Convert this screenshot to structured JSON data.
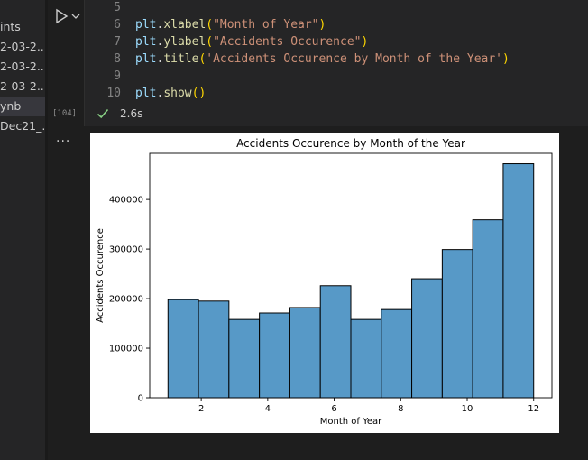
{
  "explorer": {
    "items": [
      {
        "label": "ints"
      },
      {
        "label": "2-03-2..."
      },
      {
        "label": "2-03-2..."
      },
      {
        "label": "2-03-2..."
      },
      {
        "label": "ynb"
      },
      {
        "label": "Dec21_..."
      }
    ]
  },
  "cell": {
    "execution_count": "[104]",
    "status_time": "2.6s",
    "ellipsis": "...",
    "lines": [
      {
        "num": "5",
        "tokens": []
      },
      {
        "num": "6",
        "tokens": [
          {
            "t": "plt",
            "c": "obj"
          },
          {
            "t": ".",
            "c": ""
          },
          {
            "t": "xlabel",
            "c": "fn"
          },
          {
            "t": "(",
            "c": "paren"
          },
          {
            "t": "\"Month of Year\"",
            "c": "str"
          },
          {
            "t": ")",
            "c": "paren"
          }
        ]
      },
      {
        "num": "7",
        "tokens": [
          {
            "t": "plt",
            "c": "obj"
          },
          {
            "t": ".",
            "c": ""
          },
          {
            "t": "ylabel",
            "c": "fn"
          },
          {
            "t": "(",
            "c": "paren"
          },
          {
            "t": "\"Accidents Occurence\"",
            "c": "str"
          },
          {
            "t": ")",
            "c": "paren"
          }
        ]
      },
      {
        "num": "8",
        "tokens": [
          {
            "t": "plt",
            "c": "obj"
          },
          {
            "t": ".",
            "c": ""
          },
          {
            "t": "title",
            "c": "fn"
          },
          {
            "t": "(",
            "c": "paren"
          },
          {
            "t": "'Accidents Occurence by Month of the Year'",
            "c": "str"
          },
          {
            "t": ")",
            "c": "paren"
          }
        ]
      },
      {
        "num": "9",
        "tokens": []
      },
      {
        "num": "10",
        "tokens": [
          {
            "t": "plt",
            "c": "obj"
          },
          {
            "t": ".",
            "c": ""
          },
          {
            "t": "show",
            "c": "fn"
          },
          {
            "t": "()",
            "c": "paren"
          }
        ]
      }
    ]
  },
  "colors": {
    "bar_fill": "#5799c7",
    "bar_edge": "#000000"
  },
  "chart_data": {
    "type": "bar",
    "title": "Accidents Occurence by Month of the Year",
    "xlabel": "Month of Year",
    "ylabel": "Accidents Occurence",
    "xlim": [
      0.45,
      12.55
    ],
    "ylim": [
      0,
      493000
    ],
    "xticks": [
      2,
      4,
      6,
      8,
      10,
      12
    ],
    "yticks": [
      0,
      100000,
      200000,
      300000,
      400000
    ],
    "ytick_labels": [
      "0",
      "100000",
      "200000",
      "300000",
      "400000"
    ],
    "bins": [
      {
        "x0": 1.0,
        "x1": 1.917,
        "value": 198000
      },
      {
        "x0": 1.917,
        "x1": 2.833,
        "value": 195000
      },
      {
        "x0": 2.833,
        "x1": 3.75,
        "value": 158000
      },
      {
        "x0": 3.75,
        "x1": 4.667,
        "value": 171000
      },
      {
        "x0": 4.667,
        "x1": 5.583,
        "value": 182000
      },
      {
        "x0": 5.583,
        "x1": 6.5,
        "value": 226000
      },
      {
        "x0": 6.5,
        "x1": 7.417,
        "value": 158000
      },
      {
        "x0": 7.417,
        "x1": 8.333,
        "value": 178000
      },
      {
        "x0": 8.333,
        "x1": 9.25,
        "value": 240000
      },
      {
        "x0": 9.25,
        "x1": 10.167,
        "value": 299000
      },
      {
        "x0": 10.167,
        "x1": 11.083,
        "value": 359000
      },
      {
        "x0": 11.083,
        "x1": 12.0,
        "value": 472000
      }
    ]
  }
}
